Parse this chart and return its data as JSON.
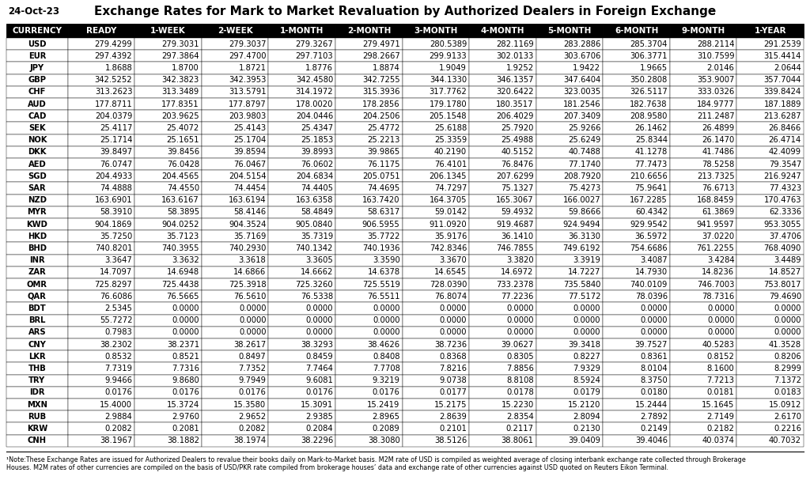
{
  "title": "Exchange Rates for Mark to Market Revaluation by Authorized Dealers in Foreign Exchange",
  "date_label": "24-Oct-23",
  "columns": [
    "CURRENCY",
    "READY",
    "1-WEEK",
    "2-WEEK",
    "1-MONTH",
    "2-MONTH",
    "3-MONTH",
    "4-MONTH",
    "5-MONTH",
    "6-MONTH",
    "9-MONTH",
    "1-YEAR"
  ],
  "rows": [
    [
      "USD",
      "279.4299",
      "279.3031",
      "279.3037",
      "279.3267",
      "279.4971",
      "280.5389",
      "282.1169",
      "283.2886",
      "285.3704",
      "288.2114",
      "291.2539"
    ],
    [
      "EUR",
      "297.4392",
      "297.3864",
      "297.4700",
      "297.7103",
      "298.2667",
      "299.9133",
      "302.0133",
      "303.6706",
      "306.3771",
      "310.7599",
      "315.4414"
    ],
    [
      "JPY",
      "1.8688",
      "1.8700",
      "1.8721",
      "1.8776",
      "1.8874",
      "1.9049",
      "1.9252",
      "1.9422",
      "1.9665",
      "2.0146",
      "2.0644"
    ],
    [
      "GBP",
      "342.5252",
      "342.3823",
      "342.3953",
      "342.4580",
      "342.7255",
      "344.1330",
      "346.1357",
      "347.6404",
      "350.2808",
      "353.9007",
      "357.7044"
    ],
    [
      "CHF",
      "313.2623",
      "313.3489",
      "313.5791",
      "314.1972",
      "315.3936",
      "317.7762",
      "320.6422",
      "323.0035",
      "326.5117",
      "333.0326",
      "339.8424"
    ],
    [
      "AUD",
      "177.8711",
      "177.8351",
      "177.8797",
      "178.0020",
      "178.2856",
      "179.1780",
      "180.3517",
      "181.2546",
      "182.7638",
      "184.9777",
      "187.1889"
    ],
    [
      "CAD",
      "204.0379",
      "203.9625",
      "203.9803",
      "204.0446",
      "204.2506",
      "205.1548",
      "206.4029",
      "207.3409",
      "208.9580",
      "211.2487",
      "213.6287"
    ],
    [
      "SEK",
      "25.4117",
      "25.4072",
      "25.4143",
      "25.4347",
      "25.4772",
      "25.6188",
      "25.7920",
      "25.9266",
      "26.1462",
      "26.4899",
      "26.8466"
    ],
    [
      "NOK",
      "25.1714",
      "25.1651",
      "25.1704",
      "25.1853",
      "25.2213",
      "25.3359",
      "25.4988",
      "25.6249",
      "25.8344",
      "26.1470",
      "26.4714"
    ],
    [
      "DKK",
      "39.8497",
      "39.8456",
      "39.8594",
      "39.8993",
      "39.9865",
      "40.2190",
      "40.5152",
      "40.7488",
      "41.1278",
      "41.7486",
      "42.4099"
    ],
    [
      "AED",
      "76.0747",
      "76.0428",
      "76.0467",
      "76.0602",
      "76.1175",
      "76.4101",
      "76.8476",
      "77.1740",
      "77.7473",
      "78.5258",
      "79.3547"
    ],
    [
      "SGD",
      "204.4933",
      "204.4565",
      "204.5154",
      "204.6834",
      "205.0751",
      "206.1345",
      "207.6299",
      "208.7920",
      "210.6656",
      "213.7325",
      "216.9247"
    ],
    [
      "SAR",
      "74.4888",
      "74.4550",
      "74.4454",
      "74.4405",
      "74.4695",
      "74.7297",
      "75.1327",
      "75.4273",
      "75.9641",
      "76.6713",
      "77.4323"
    ],
    [
      "NZD",
      "163.6901",
      "163.6167",
      "163.6194",
      "163.6358",
      "163.7420",
      "164.3705",
      "165.3067",
      "166.0027",
      "167.2285",
      "168.8459",
      "170.4763"
    ],
    [
      "MYR",
      "58.3910",
      "58.3895",
      "58.4146",
      "58.4849",
      "58.6317",
      "59.0142",
      "59.4932",
      "59.8666",
      "60.4342",
      "61.3869",
      "62.3336"
    ],
    [
      "KWD",
      "904.1869",
      "904.0252",
      "904.3524",
      "905.0840",
      "906.5955",
      "911.0920",
      "919.4687",
      "924.9494",
      "929.9542",
      "941.9597",
      "953.3055"
    ],
    [
      "HKD",
      "35.7250",
      "35.7123",
      "35.7169",
      "35.7319",
      "35.7722",
      "35.9176",
      "36.1410",
      "36.3130",
      "36.5972",
      "37.0220",
      "37.4706"
    ],
    [
      "BHD",
      "740.8201",
      "740.3955",
      "740.2930",
      "740.1342",
      "740.1936",
      "742.8346",
      "746.7855",
      "749.6192",
      "754.6686",
      "761.2255",
      "768.4090"
    ],
    [
      "INR",
      "3.3647",
      "3.3632",
      "3.3618",
      "3.3605",
      "3.3590",
      "3.3670",
      "3.3820",
      "3.3919",
      "3.4087",
      "3.4284",
      "3.4489"
    ],
    [
      "ZAR",
      "14.7097",
      "14.6948",
      "14.6866",
      "14.6662",
      "14.6378",
      "14.6545",
      "14.6972",
      "14.7227",
      "14.7930",
      "14.8236",
      "14.8527"
    ],
    [
      "OMR",
      "725.8297",
      "725.4438",
      "725.3918",
      "725.3260",
      "725.5519",
      "728.0390",
      "733.2378",
      "735.5840",
      "740.0109",
      "746.7003",
      "753.8017"
    ],
    [
      "QAR",
      "76.6086",
      "76.5665",
      "76.5610",
      "76.5338",
      "76.5511",
      "76.8074",
      "77.2236",
      "77.5172",
      "78.0396",
      "78.7316",
      "79.4690"
    ],
    [
      "BDT",
      "2.5345",
      "0.0000",
      "0.0000",
      "0.0000",
      "0.0000",
      "0.0000",
      "0.0000",
      "0.0000",
      "0.0000",
      "0.0000",
      "0.0000"
    ],
    [
      "BRL",
      "55.7272",
      "0.0000",
      "0.0000",
      "0.0000",
      "0.0000",
      "0.0000",
      "0.0000",
      "0.0000",
      "0.0000",
      "0.0000",
      "0.0000"
    ],
    [
      "ARS",
      "0.7983",
      "0.0000",
      "0.0000",
      "0.0000",
      "0.0000",
      "0.0000",
      "0.0000",
      "0.0000",
      "0.0000",
      "0.0000",
      "0.0000"
    ],
    [
      "CNY",
      "38.2302",
      "38.2371",
      "38.2617",
      "38.3293",
      "38.4626",
      "38.7236",
      "39.0627",
      "39.3418",
      "39.7527",
      "40.5283",
      "41.3528"
    ],
    [
      "LKR",
      "0.8532",
      "0.8521",
      "0.8497",
      "0.8459",
      "0.8408",
      "0.8368",
      "0.8305",
      "0.8227",
      "0.8361",
      "0.8152",
      "0.8206"
    ],
    [
      "THB",
      "7.7319",
      "7.7316",
      "7.7352",
      "7.7464",
      "7.7708",
      "7.8216",
      "7.8856",
      "7.9329",
      "8.0104",
      "8.1600",
      "8.2999"
    ],
    [
      "TRY",
      "9.9466",
      "9.8680",
      "9.7949",
      "9.6081",
      "9.3219",
      "9.0738",
      "8.8108",
      "8.5924",
      "8.3750",
      "7.7213",
      "7.1372"
    ],
    [
      "IDR",
      "0.0176",
      "0.0176",
      "0.0176",
      "0.0176",
      "0.0176",
      "0.0177",
      "0.0178",
      "0.0179",
      "0.0180",
      "0.0181",
      "0.0183"
    ],
    [
      "MXN",
      "15.4000",
      "15.3724",
      "15.3580",
      "15.3091",
      "15.2419",
      "15.2175",
      "15.2230",
      "15.2120",
      "15.2444",
      "15.1645",
      "15.0912"
    ],
    [
      "RUB",
      "2.9884",
      "2.9760",
      "2.9652",
      "2.9385",
      "2.8965",
      "2.8639",
      "2.8354",
      "2.8094",
      "2.7892",
      "2.7149",
      "2.6170"
    ],
    [
      "KRW",
      "0.2082",
      "0.2081",
      "0.2082",
      "0.2084",
      "0.2089",
      "0.2101",
      "0.2117",
      "0.2130",
      "0.2149",
      "0.2182",
      "0.2216"
    ],
    [
      "CNH",
      "38.1967",
      "38.1882",
      "38.1974",
      "38.2296",
      "38.3080",
      "38.5126",
      "38.8061",
      "39.0409",
      "39.4046",
      "40.0374",
      "40.7032"
    ]
  ],
  "footnote_line1": "¹Note:These Exchange Rates are issued for Authorized Dealers to revalue their books daily on Mark-to-Market basis. M2M rate of USD is compiled as weighted average of closing interbank exchange rate collected through Brokerage",
  "footnote_line2": "Houses. M2M rates of other currencies are compiled on the basis of USD/PKR rate compiled from brokerage houses’ data and exchange rate of other currencies against USD quoted on Reuters Eikon Terminal.",
  "header_bg": "#000000",
  "header_fg": "#ffffff",
  "border_color": "#000000",
  "title_fontsize": 11,
  "header_fontsize": 7.5,
  "cell_fontsize": 7.2,
  "date_fontsize": 8.5,
  "footnote_fontsize": 5.8
}
